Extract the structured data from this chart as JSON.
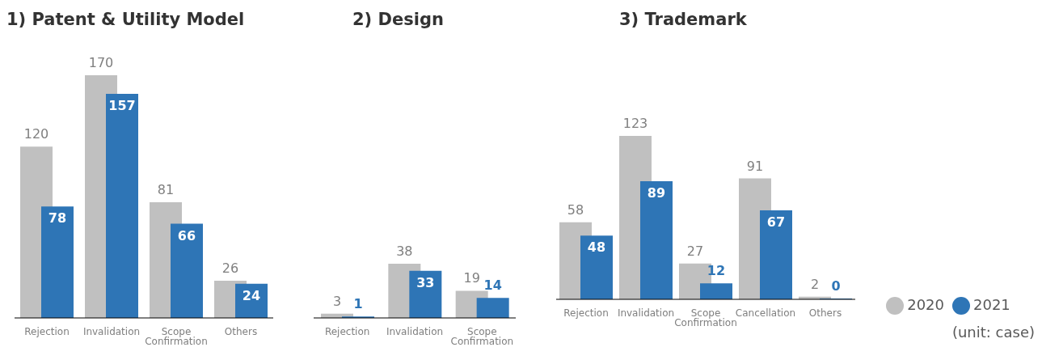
{
  "chart_data": [
    {
      "type": "bar",
      "title": "1) Patent & Utility Model",
      "categories": [
        "Rejection",
        "Invalidation",
        "Scope Confirmation",
        "Others"
      ],
      "tick_labels": "x",
      "data_labels": true,
      "legend": false,
      "series": [
        {
          "color": "#c0c0c0",
          "values": [
            120,
            170,
            81,
            26
          ]
        },
        {
          "color": "#2e75b6",
          "values": [
            78,
            157,
            66,
            24
          ]
        }
      ]
    },
    {
      "type": "bar",
      "title": "2) Design",
      "categories": [
        "Rejection",
        "Invalidation",
        "Scope Confirmation"
      ],
      "tick_labels": "x",
      "data_labels": true,
      "legend": false,
      "series": [
        {
          "color": "#c0c0c0",
          "values": [
            3,
            38,
            19
          ]
        },
        {
          "color": "#2e75b6",
          "values": [
            1,
            33,
            14
          ]
        }
      ]
    },
    {
      "type": "bar",
      "title": "3) Trademark",
      "categories": [
        "Rejection",
        "Invalidation",
        "Scope Confirmation",
        "Cancellation",
        "Others"
      ],
      "tick_labels": "x",
      "data_labels": true,
      "legend": "right",
      "annotations": [
        "(unit: case)"
      ],
      "series": [
        {
          "name": "2020",
          "color": "#c0c0c0",
          "values": [
            58,
            123,
            27,
            91,
            2
          ]
        },
        {
          "name": "2021",
          "color": "#2e75b6",
          "values": [
            48,
            89,
            12,
            67,
            0
          ]
        }
      ]
    }
  ]
}
